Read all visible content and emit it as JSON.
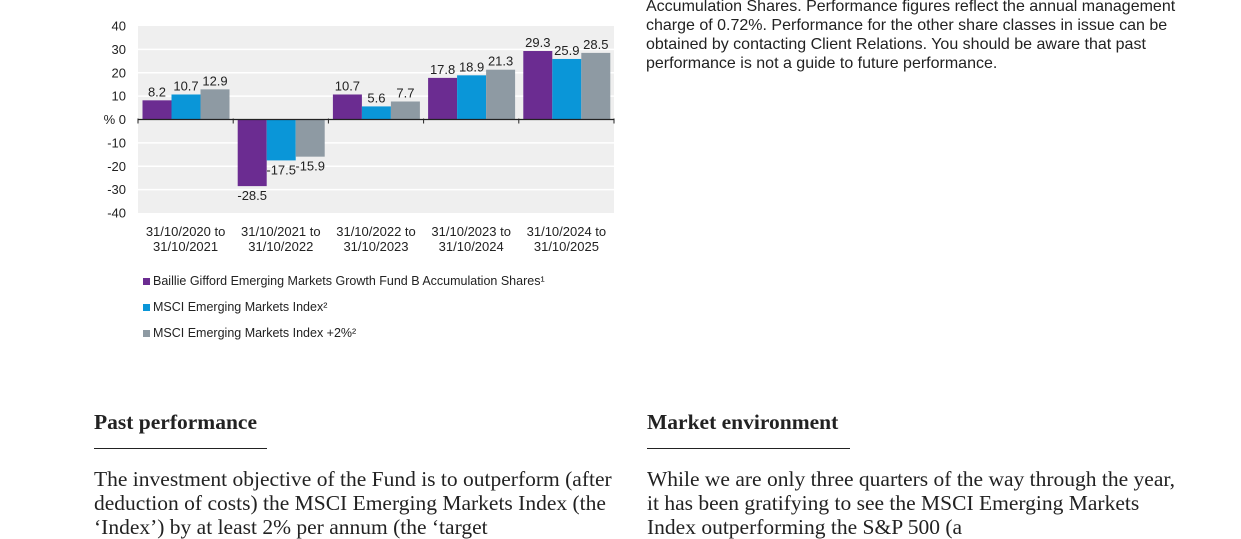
{
  "chart_data": {
    "type": "bar",
    "categories": [
      [
        "31/10/2020 to",
        "31/10/2021"
      ],
      [
        "31/10/2021 to",
        "31/10/2022"
      ],
      [
        "31/10/2022 to",
        "31/10/2023"
      ],
      [
        "31/10/2023 to",
        "31/10/2024"
      ],
      [
        "31/10/2024 to",
        "31/10/2025"
      ]
    ],
    "series": [
      {
        "name": "Baillie Gifford Emerging Markets Growth Fund B Accumulation Shares¹",
        "color": "#6b2c91",
        "values": [
          8.2,
          -28.5,
          10.7,
          17.8,
          29.3
        ]
      },
      {
        "name": "MSCI Emerging Markets Index²",
        "color": "#0a96d8",
        "values": [
          10.7,
          -17.5,
          5.6,
          18.9,
          25.9
        ]
      },
      {
        "name": "MSCI Emerging Markets Index +2%²",
        "color": "#8e9aa3",
        "values": [
          12.9,
          -15.9,
          7.7,
          21.3,
          28.5
        ]
      }
    ],
    "data_labels": [
      [
        "8.2",
        "10.7",
        "12.9"
      ],
      [
        "-28.5",
        "-17.5",
        "-15.9"
      ],
      [
        "10.7",
        "5.6",
        "7.7"
      ],
      [
        "17.8",
        "18.9",
        "21.3"
      ],
      [
        "29.3",
        "25.9",
        "28.5"
      ]
    ],
    "ylim": [
      -40,
      40
    ],
    "yticks": [
      40,
      30,
      20,
      10,
      0,
      -10,
      -20,
      -30,
      -40
    ],
    "ytick_labels": [
      "40",
      "30",
      "20",
      "10",
      "% 0",
      "-10",
      "-20",
      "-30",
      "-40"
    ],
    "grid": true,
    "legend_position": "bottom-left",
    "title": "",
    "xlabel": "",
    "ylabel": ""
  },
  "note": {
    "text": "Accumulation Shares. Performance figures reflect the annual management charge of 0.72%. Performance for the other share classes in issue can be obtained by contacting Client Relations. You should be aware that past performance is not a guide to future performance."
  },
  "sections": {
    "past_performance": {
      "heading": "Past performance",
      "body": "The investment objective of the Fund is to outperform (after deduction of costs) the MSCI Emerging Markets Index (the ‘Index’) by at least 2% per annum (the ‘target"
    },
    "market_environment": {
      "heading": "Market environment",
      "body": "While we are only three quarters of the way through the year, it has been gratifying to see the MSCI Emerging Markets Index outperforming the S&P 500 (a"
    }
  },
  "colors": {
    "plot_background": "#efefef",
    "grid": "#ffffff",
    "text": "#222222"
  }
}
